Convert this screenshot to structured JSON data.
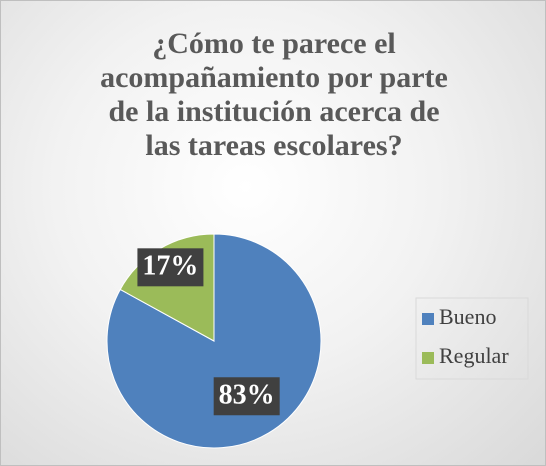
{
  "chart_data": {
    "type": "pie",
    "title": "¿Cómo te parece el acompañamiento por parte de la institución acerca de las tareas escolares?",
    "categories": [
      "Bueno",
      "Regular"
    ],
    "values": [
      83,
      17
    ],
    "value_labels": [
      "83%",
      "17%"
    ],
    "colors": [
      "#4f81bd",
      "#9bbb59"
    ],
    "legend": "right"
  }
}
